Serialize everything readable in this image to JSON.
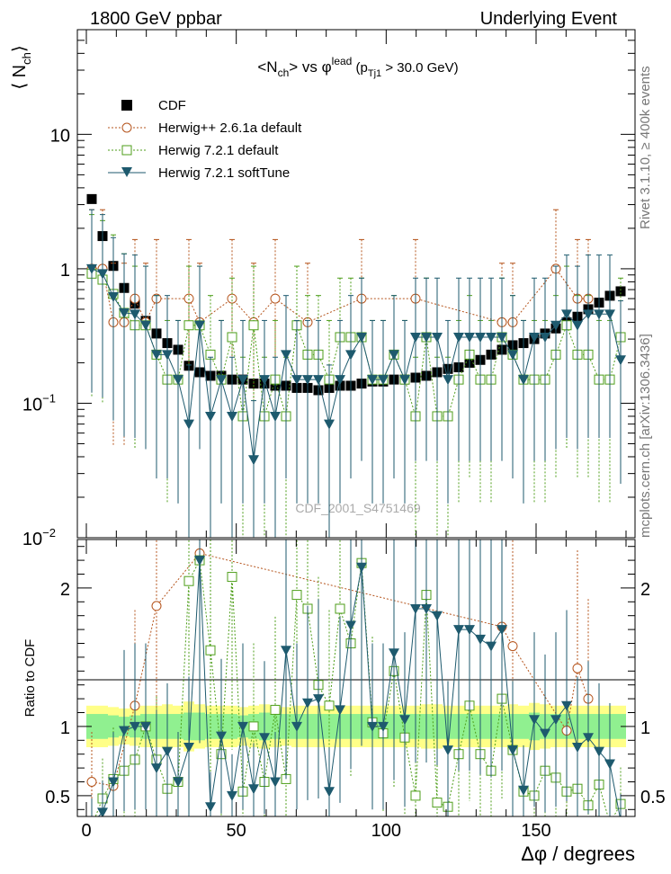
{
  "header": {
    "left": "1800 GeV ppbar",
    "right": "Underlying Event"
  },
  "side_labels": {
    "rivet": "Rivet 3.1.10, ≥ 400k events",
    "mcplots": "mcplots.cern.ch [arXiv:1306.3436]"
  },
  "watermark": "CDF_2001_S4751469",
  "chart_data": [
    {
      "type": "scatter",
      "title": "<N_ch> vs φ^lead (p_Tj1 > 30.0 GeV)",
      "title_parts": {
        "a": "<N",
        "a_sub": "ch",
        "b": "> vs φ",
        "b_sup": "lead",
        "c": " (p",
        "c_sub": "Tj1",
        "d": " > 30.0 GeV)"
      },
      "ylabel": "⟨ N_ch ⟩",
      "ylabel_parts": {
        "main": "⟨ N",
        "sub": "ch",
        "close": "⟩"
      },
      "xlim": [
        -3,
        183
      ],
      "ylim": [
        0.01,
        60
      ],
      "yscale": "log",
      "yticks": [
        {
          "value": 10,
          "label_main": "10",
          "label_sup": ""
        },
        {
          "value": 1,
          "label_main": "1",
          "label_sup": ""
        },
        {
          "value": 0.1,
          "label_main": "10",
          "label_sup": "−1"
        },
        {
          "value": 0.01,
          "label_main": "10",
          "label_sup": "−2"
        }
      ],
      "legend_position": "top-left",
      "x": [
        1.8,
        5.4,
        9.0,
        12.6,
        16.2,
        19.8,
        23.4,
        27.0,
        30.6,
        34.2,
        37.8,
        41.4,
        45.0,
        48.6,
        52.2,
        55.8,
        59.4,
        63.0,
        66.6,
        70.2,
        73.8,
        77.4,
        81.0,
        84.6,
        88.2,
        91.8,
        95.4,
        99.0,
        102.6,
        106.2,
        109.8,
        113.4,
        117.0,
        120.6,
        124.2,
        127.8,
        131.4,
        135.0,
        138.6,
        142.2,
        145.8,
        149.4,
        153.0,
        156.6,
        160.2,
        163.8,
        167.4,
        171.0,
        174.6,
        178.2
      ],
      "series": [
        {
          "name": "CDF",
          "color": "#000000",
          "marker": "filled-square",
          "values": [
            3.3,
            1.75,
            1.05,
            0.72,
            0.55,
            0.41,
            0.33,
            0.28,
            0.25,
            0.19,
            0.17,
            0.16,
            0.16,
            0.15,
            0.15,
            0.14,
            0.14,
            0.135,
            0.135,
            0.13,
            0.13,
            0.125,
            0.13,
            0.135,
            0.135,
            0.14,
            0.145,
            0.145,
            0.15,
            0.15,
            0.155,
            0.16,
            0.17,
            0.18,
            0.185,
            0.2,
            0.21,
            0.23,
            0.25,
            0.27,
            0.28,
            0.3,
            0.33,
            0.36,
            0.4,
            0.44,
            0.5,
            0.56,
            0.63,
            0.68
          ]
        },
        {
          "name": "Herwig++ 2.6.1a default",
          "color": "#b5541c",
          "marker": "open-circle",
          "dashed": true,
          "values": [
            1.0,
            1.0,
            0.4,
            0.4,
            0.6,
            0.4,
            0.6,
            null,
            null,
            0.6,
            0.4,
            null,
            null,
            0.6,
            null,
            0.4,
            null,
            0.6,
            null,
            null,
            0.4,
            null,
            null,
            null,
            null,
            0.6,
            null,
            null,
            null,
            null,
            0.6,
            null,
            null,
            null,
            null,
            null,
            null,
            null,
            0.4,
            0.4,
            null,
            null,
            null,
            1.0,
            null,
            0.6,
            0.6,
            null,
            null,
            null
          ]
        },
        {
          "name": "Herwig 7.2.1 default",
          "color": "#4e9e1a",
          "marker": "open-square",
          "dashed": true,
          "values": [
            0.92,
            0.83,
            0.65,
            0.47,
            0.38,
            0.38,
            0.23,
            0.15,
            0.15,
            0.38,
            0.38,
            0.23,
            0.15,
            0.31,
            0.08,
            0.38,
            0.08,
            0.15,
            0.08,
            0.38,
            0.23,
            0.23,
            0.15,
            0.31,
            0.31,
            0.31,
            0.15,
            0.15,
            0.23,
            0.15,
            0.08,
            0.31,
            0.08,
            0.08,
            0.15,
            0.23,
            0.15,
            0.15,
            0.31,
            0.23,
            0.15,
            0.15,
            0.15,
            0.23,
            0.38,
            0.23,
            0.23,
            0.15,
            0.15,
            0.31
          ]
        },
        {
          "name": "Herwig 7.2.1 softTune",
          "color": "#1e5a6e",
          "marker": "filled-triangle-down",
          "values": [
            1.0,
            0.92,
            0.62,
            0.47,
            0.46,
            0.38,
            0.23,
            0.23,
            0.15,
            0.07,
            0.38,
            0.08,
            0.15,
            0.08,
            0.15,
            0.038,
            0.15,
            0.08,
            0.23,
            0.15,
            0.15,
            0.15,
            0.07,
            0.15,
            0.23,
            0.31,
            0.15,
            0.15,
            0.23,
            0.15,
            0.31,
            0.31,
            0.31,
            0.15,
            0.31,
            0.31,
            0.31,
            0.31,
            0.31,
            0.23,
            0.15,
            0.31,
            0.31,
            0.38,
            0.46,
            0.38,
            0.46,
            0.46,
            0.46,
            0.21
          ]
        }
      ]
    },
    {
      "type": "scatter",
      "title": "",
      "ylabel": "Ratio to CDF",
      "xlabel": "Δφ / degrees",
      "xlim": [
        -3,
        183
      ],
      "ylim": [
        0.35,
        2.35
      ],
      "xticks": [
        0,
        50,
        100,
        150
      ],
      "yticks": [
        0.5,
        1,
        2
      ],
      "band": {
        "inner_color": "#90f090",
        "outer_color": "#ffff88",
        "inner": [
          0.09,
          0.09,
          0.08,
          0.07,
          0.08,
          0.09,
          0.09,
          0.09,
          0.09,
          0.1,
          0.1,
          0.09,
          0.09,
          0.09,
          0.08,
          0.09,
          0.1,
          0.09,
          0.09,
          0.09,
          0.09,
          0.09,
          0.09,
          0.09,
          0.09,
          0.09,
          0.09,
          0.09,
          0.09,
          0.09,
          0.09,
          0.09,
          0.09,
          0.09,
          0.09,
          0.09,
          0.09,
          0.09,
          0.09,
          0.09,
          0.09,
          0.1,
          0.09,
          0.09,
          0.09,
          0.09,
          0.09,
          0.09,
          0.09,
          0.09
        ],
        "outer": [
          0.15,
          0.15,
          0.14,
          0.13,
          0.14,
          0.15,
          0.15,
          0.16,
          0.15,
          0.18,
          0.16,
          0.15,
          0.15,
          0.15,
          0.14,
          0.15,
          0.16,
          0.15,
          0.14,
          0.15,
          0.15,
          0.15,
          0.15,
          0.15,
          0.15,
          0.15,
          0.15,
          0.15,
          0.15,
          0.15,
          0.15,
          0.16,
          0.16,
          0.15,
          0.15,
          0.15,
          0.15,
          0.15,
          0.15,
          0.16,
          0.15,
          0.17,
          0.16,
          0.15,
          0.15,
          0.15,
          0.15,
          0.15,
          0.15,
          0.15
        ]
      },
      "series": [
        {
          "name": "Herwig++ 2.6.1a default",
          "color": "#b5541c",
          "values": [
            0.6,
            null,
            0.57,
            null,
            1.15,
            null,
            1.87,
            null,
            null,
            null,
            2.25,
            null,
            null,
            null,
            null,
            null,
            null,
            null,
            null,
            null,
            null,
            null,
            null,
            null,
            null,
            null,
            null,
            null,
            null,
            null,
            null,
            null,
            null,
            null,
            null,
            null,
            null,
            null,
            1.72,
            1.58,
            null,
            null,
            null,
            null,
            0.97,
            1.42,
            1.2,
            null,
            null,
            null
          ]
        },
        {
          "name": "Herwig 7.2.1 default",
          "color": "#4e9e1a",
          "values": [
            0.28,
            0.48,
            0.62,
            0.68,
            0.76,
            1.0,
            0.76,
            0.55,
            0.6,
            2.05,
            2.2,
            1.55,
            0.8,
            2.08,
            0.53,
            1.0,
            0.6,
            1.12,
            0.62,
            1.95,
            1.85,
            1.3,
            1.15,
            1.85,
            1.6,
            2.18,
            1.03,
            0.95,
            1.4,
            0.92,
            0.5,
            1.95,
            0.45,
            0.42,
            0.8,
            1.15,
            0.8,
            0.68,
            1.2,
            0.83,
            0.53,
            0.5,
            0.68,
            0.63,
            0.53,
            0.55,
            0.43,
            0.58,
            0.3,
            0.44
          ]
        },
        {
          "name": "Herwig 7.2.1 softTune",
          "color": "#1e5a6e",
          "values": [
            0.3,
            0.38,
            0.6,
            0.97,
            1.0,
            1.0,
            0.7,
            0.82,
            0.6,
            0.85,
            2.2,
            0.42,
            0.93,
            0.5,
            1.0,
            0.55,
            0.92,
            0.6,
            1.55,
            1.0,
            1.17,
            1.2,
            0.53,
            1.12,
            1.73,
            2.15,
            1.0,
            1.0,
            1.53,
            1.05,
            1.85,
            1.85,
            1.8,
            0.83,
            1.7,
            1.7,
            1.63,
            1.58,
            1.7,
            0.83,
            0.54,
            1.05,
            0.95,
            1.05,
            1.15,
            0.85,
            0.92,
            0.82,
            0.73,
            0.32
          ]
        }
      ]
    }
  ]
}
